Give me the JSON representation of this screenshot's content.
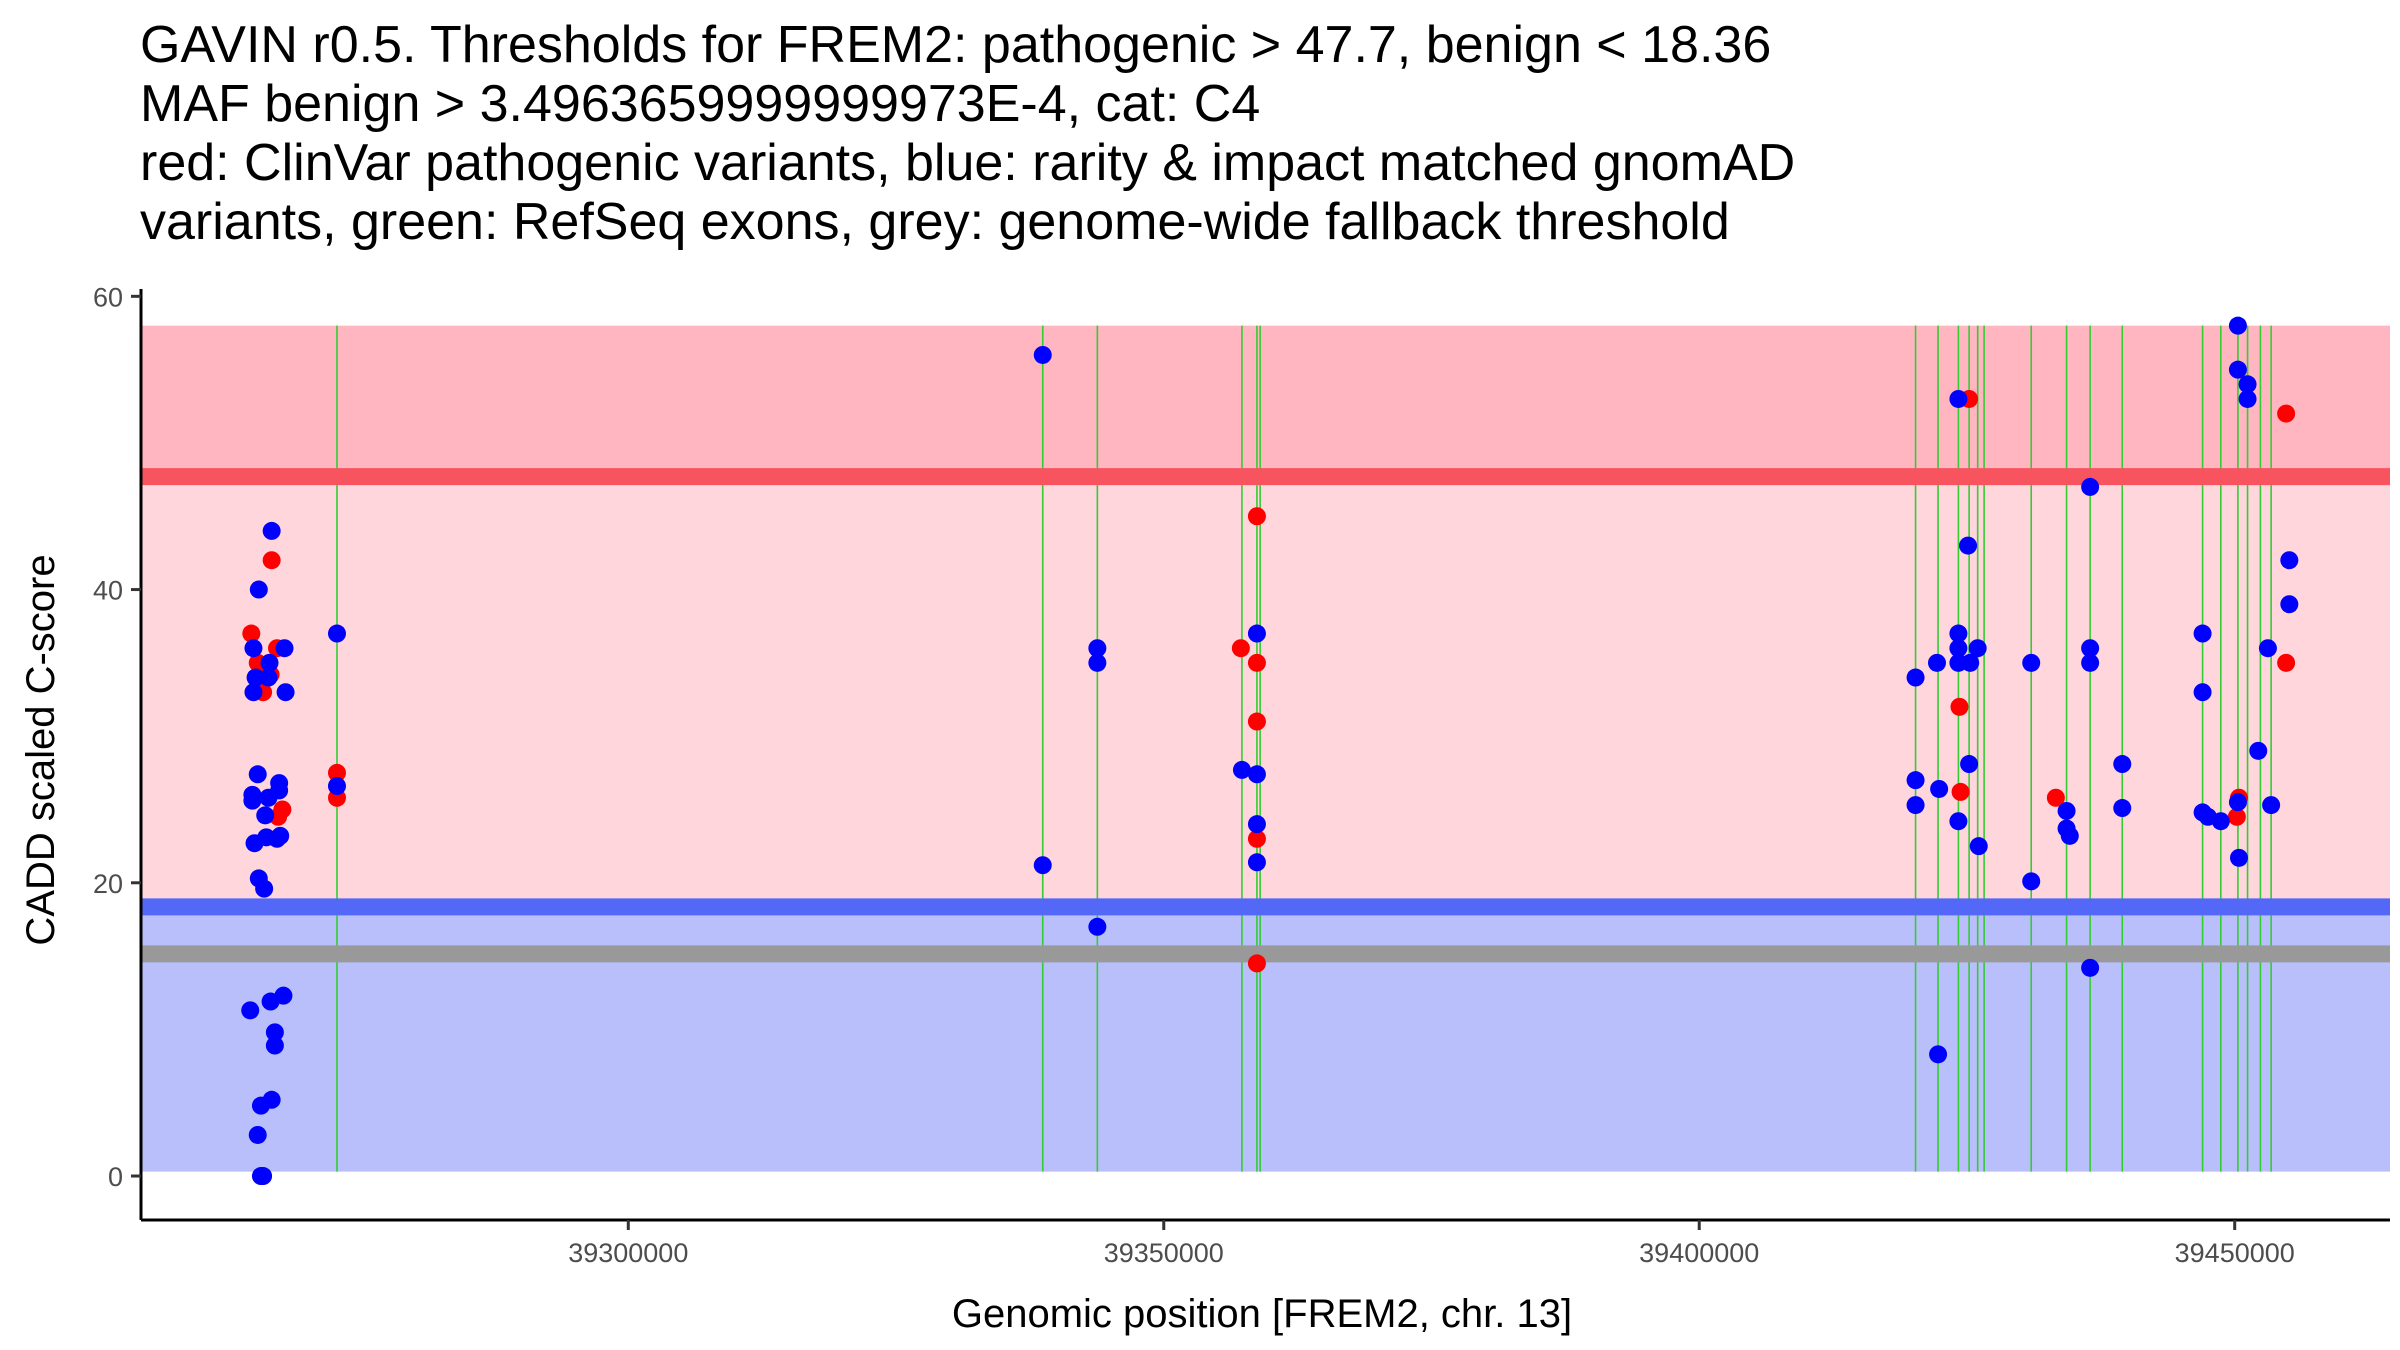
{
  "chart_data": {
    "type": "scatter",
    "title_lines": [
      "GAVIN r0.5. Thresholds for FREM2: pathogenic > 47.7, benign < 18.36",
      "MAF benign > 3.4963659999999973E-4, cat: C4",
      "red: ClinVar pathogenic variants, blue: rarity & impact matched gnomAD",
      "variants, green: RefSeq exons, grey: genome-wide fallback threshold"
    ],
    "xlabel": "Genomic position [FREM2, chr. 13]",
    "ylabel": "CADD scaled C-score",
    "xlim": [
      39254500,
      39464500
    ],
    "ylim": [
      -3,
      60.5
    ],
    "x_ticks": [
      39300000,
      39350000,
      39400000,
      39450000
    ],
    "y_ticks": [
      0,
      20,
      40,
      60
    ],
    "colors": {
      "pathogenic_region": "#ffb6c1",
      "middle_region": "#ffd6dc",
      "benign_region": "#b9bffa",
      "pathogenic_line": "#f7545f",
      "benign_line": "#5468f7",
      "fallback_line": "#999999",
      "exon": "#33cc33",
      "pathogenic_point": "#ff0000",
      "population_point": "#0000ff"
    },
    "regions": [
      {
        "name": "pathogenic",
        "y0": 47.7,
        "y1": 58
      },
      {
        "name": "middle",
        "y0": 18.36,
        "y1": 47.7
      },
      {
        "name": "benign",
        "y0": 0.3,
        "y1": 18.36
      }
    ],
    "thresholds": {
      "pathogenic": 47.7,
      "benign": 18.36,
      "fallback": 15.15
    },
    "exons": [
      39272800,
      39338700,
      39343800,
      39357300,
      39358700,
      39359000,
      39420200,
      39422300,
      39424200,
      39425200,
      39426000,
      39426600,
      39431000,
      39434300,
      39436500,
      39439500,
      39447000,
      39448700,
      39450300,
      39451200,
      39452400,
      39453400
    ],
    "series": [
      {
        "name": "ClinVar pathogenic",
        "color": "#ff0000",
        "points": [
          [
            39264800,
            37
          ],
          [
            39265400,
            35
          ],
          [
            39265900,
            33
          ],
          [
            39266200,
            34.5
          ],
          [
            39266600,
            34.2
          ],
          [
            39266700,
            42
          ],
          [
            39267200,
            36
          ],
          [
            39267300,
            24.5
          ],
          [
            39267700,
            25
          ],
          [
            39272800,
            27.5
          ],
          [
            39272800,
            25.8
          ],
          [
            39357200,
            36
          ],
          [
            39358700,
            45
          ],
          [
            39358700,
            35
          ],
          [
            39358700,
            31
          ],
          [
            39358700,
            23
          ],
          [
            39358700,
            14.5
          ],
          [
            39424300,
            32
          ],
          [
            39424400,
            26.2
          ],
          [
            39425200,
            53
          ],
          [
            39433300,
            25.8
          ],
          [
            39450200,
            24.5
          ],
          [
            39450400,
            25.8
          ],
          [
            39454800,
            52
          ],
          [
            39454800,
            35
          ]
        ]
      },
      {
        "name": "gnomAD matched",
        "color": "#0000ff",
        "points": [
          [
            39264700,
            11.3
          ],
          [
            39264900,
            26
          ],
          [
            39264900,
            25.6
          ],
          [
            39265000,
            33
          ],
          [
            39265000,
            36
          ],
          [
            39265100,
            22.7
          ],
          [
            39265200,
            34
          ],
          [
            39265400,
            27.4
          ],
          [
            39265400,
            2.8
          ],
          [
            39265500,
            40
          ],
          [
            39265500,
            20.3
          ],
          [
            39265700,
            4.8
          ],
          [
            39265700,
            0
          ],
          [
            39265900,
            0
          ],
          [
            39266000,
            19.6
          ],
          [
            39266100,
            24.6
          ],
          [
            39266200,
            23.1
          ],
          [
            39266400,
            25.8
          ],
          [
            39266400,
            34
          ],
          [
            39266500,
            35
          ],
          [
            39266600,
            11.9
          ],
          [
            39266700,
            44
          ],
          [
            39266700,
            5.2
          ],
          [
            39267000,
            9.8
          ],
          [
            39267000,
            8.9
          ],
          [
            39267200,
            23
          ],
          [
            39267400,
            26.8
          ],
          [
            39267400,
            26.3
          ],
          [
            39267500,
            23.2
          ],
          [
            39267800,
            12.3
          ],
          [
            39267900,
            36
          ],
          [
            39268000,
            33
          ],
          [
            39272800,
            37
          ],
          [
            39272800,
            26.6
          ],
          [
            39338700,
            56
          ],
          [
            39338700,
            21.2
          ],
          [
            39343800,
            36
          ],
          [
            39343800,
            35
          ],
          [
            39343800,
            17
          ],
          [
            39357300,
            27.7
          ],
          [
            39358700,
            37
          ],
          [
            39358700,
            27.4
          ],
          [
            39358700,
            24
          ],
          [
            39358700,
            21.4
          ],
          [
            39420200,
            34
          ],
          [
            39420200,
            27
          ],
          [
            39420200,
            25.3
          ],
          [
            39422200,
            35
          ],
          [
            39422400,
            26.4
          ],
          [
            39422300,
            8.3
          ],
          [
            39424200,
            53
          ],
          [
            39424200,
            37
          ],
          [
            39424200,
            36
          ],
          [
            39424200,
            35
          ],
          [
            39424200,
            24.2
          ],
          [
            39425100,
            43
          ],
          [
            39425200,
            28.1
          ],
          [
            39425300,
            35
          ],
          [
            39426000,
            36
          ],
          [
            39426100,
            22.5
          ],
          [
            39431000,
            35
          ],
          [
            39431000,
            20.1
          ],
          [
            39434300,
            24.9
          ],
          [
            39434300,
            23.7
          ],
          [
            39434600,
            23.2
          ],
          [
            39436500,
            47
          ],
          [
            39436500,
            36
          ],
          [
            39436500,
            35
          ],
          [
            39436500,
            14.2
          ],
          [
            39439500,
            28.1
          ],
          [
            39439500,
            25.1
          ],
          [
            39447000,
            37
          ],
          [
            39447000,
            33
          ],
          [
            39447000,
            24.8
          ],
          [
            39447500,
            24.5
          ],
          [
            39448700,
            24.2
          ],
          [
            39450300,
            58
          ],
          [
            39450300,
            55
          ],
          [
            39450300,
            25.5
          ],
          [
            39450400,
            21.7
          ],
          [
            39451200,
            54
          ],
          [
            39451200,
            53
          ],
          [
            39452200,
            29
          ],
          [
            39453100,
            36
          ],
          [
            39453400,
            25.3
          ],
          [
            39455100,
            42
          ],
          [
            39455100,
            39
          ]
        ]
      }
    ]
  }
}
